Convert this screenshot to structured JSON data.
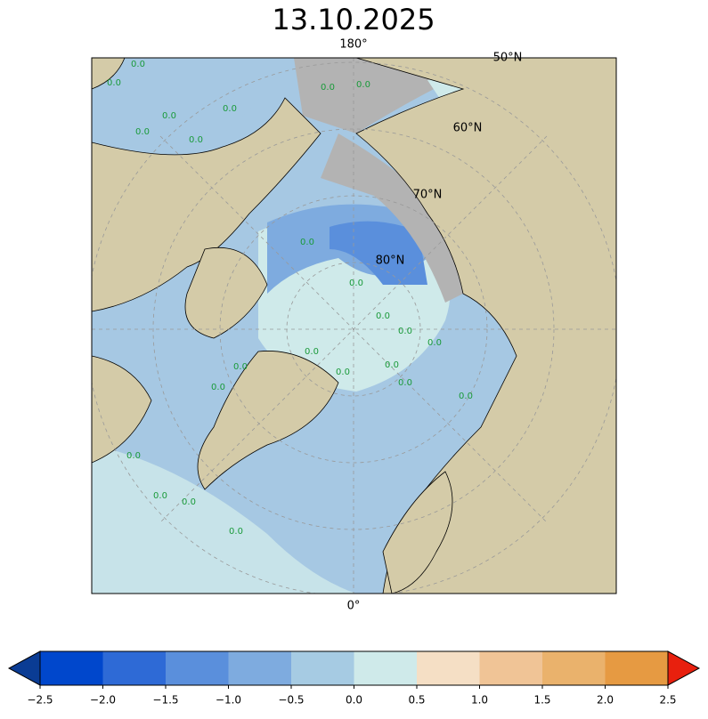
{
  "title": "13.10.2025",
  "map": {
    "meridian_top": "180°",
    "meridian_bottom": "0°",
    "parallels": [
      "50°N",
      "60°N",
      "70°N",
      "80°N"
    ],
    "contour_labels": [
      "0.0",
      "0.0",
      "0.0",
      "0.0",
      "0.0",
      "0.0",
      "0.0",
      "0.0",
      "0.0",
      "0.0",
      "0.0",
      "0.0",
      "0.0",
      "0.0",
      "0.0",
      "0.0",
      "0.0",
      "0.0",
      "0.0",
      "0.0",
      "0.0",
      "0.0",
      "0.0",
      "0.0"
    ]
  },
  "colorbar": {
    "ticks": [
      {
        "value": -2.5,
        "label": "−2.5"
      },
      {
        "value": -2.0,
        "label": "−2.0"
      },
      {
        "value": -1.5,
        "label": "−1.5"
      },
      {
        "value": -1.0,
        "label": "−1.0"
      },
      {
        "value": -0.5,
        "label": "−0.5"
      },
      {
        "value": 0.0,
        "label": "0.0"
      },
      0.5,
      {
        "value": 1.0,
        "label": "1.0"
      },
      1.5,
      {
        "value": 2.0,
        "label": "2.0"
      },
      2.5
    ],
    "colors": [
      "#0047cc",
      "#2e6ad6",
      "#5a8fdc",
      "#7eabdf",
      "#a6cbe3",
      "#cfeaea",
      "#f5dfc5",
      "#f0c496",
      "#eab26c",
      "#e69a42"
    ],
    "under_color": "#0a3c94",
    "over_color": "#e8200e"
  }
}
